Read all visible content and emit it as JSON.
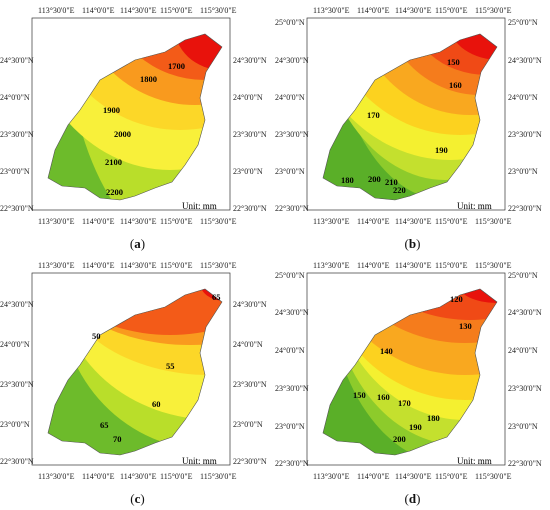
{
  "panels": [
    {
      "id": "a",
      "caption_open": "(",
      "caption_letter": "a",
      "caption_close": ")",
      "unit": "Unit: mm",
      "top_lon": [
        "113°30'0\"E",
        "114°0'0\"E",
        "114°30'0\"E",
        "115°0'0\"E",
        "115°30'0\"E"
      ],
      "bottom_lon": [
        "113°30'0\"E",
        "114°0'0\"E",
        "114°30'0\"E",
        "115°0'0\"E",
        "115°30'0\"E"
      ],
      "left_lat": [
        "24°30'0\"N",
        "24°0'0\"N",
        "23°30'0\"N",
        "23°0'0\"N",
        "22°30'0\"N"
      ],
      "right_lat": [
        "24°30'0\"N",
        "24°0'0\"N",
        "23°30'0\"N",
        "23°0'0\"N",
        "22°30'0\"N"
      ],
      "contour_labels": [
        "1700",
        "1800",
        "1900",
        "2000",
        "2100",
        "2200"
      ],
      "zone_colors": [
        "#e8120c",
        "#f35b18",
        "#f99a1e",
        "#fcd728",
        "#f8f03a",
        "#b9de2a",
        "#6dbb2b"
      ]
    },
    {
      "id": "b",
      "caption_open": "(",
      "caption_letter": "b",
      "caption_close": ")",
      "unit": "Unit: mm",
      "top_lon": [
        "113°30'0\"E",
        "114°0'0\"E",
        "114°30'0\"E",
        "115°0'0\"E",
        "115°30'0\"E"
      ],
      "bottom_lon": [
        "113°30'0\"E",
        "114°0'0\"E",
        "114°30'0\"E",
        "115°0'0\"E",
        "115°30'0\"E"
      ],
      "left_lat": [
        "25°0'0\"N",
        "24°30'0\"N",
        "24°0'0\"N",
        "23°30'0\"N",
        "23°0'0\"N",
        "22°30'0\"N"
      ],
      "right_lat": [
        "25°0'0\"N",
        "24°30'0\"N",
        "24°0'0\"N",
        "23°30'0\"N",
        "23°0'0\"N",
        "22°30'0\"N"
      ],
      "contour_labels": [
        "150",
        "160",
        "170",
        "180",
        "190",
        "200",
        "210",
        "220"
      ],
      "zone_colors": [
        "#e8120c",
        "#f04a16",
        "#f57c1c",
        "#f9a81f",
        "#fcd21f",
        "#f4f030",
        "#c4e02e",
        "#8dcb2b",
        "#5aaf28"
      ]
    },
    {
      "id": "c",
      "caption_open": "(",
      "caption_letter": "c",
      "caption_close": ")",
      "unit": "Unit: mm",
      "top_lon": [
        "113°30'0\"E",
        "114°0'0\"E",
        "114°30'0\"E",
        "115°0'0\"E",
        "115°30'0\"E"
      ],
      "bottom_lon": [
        "113°30'0\"E",
        "114°0'0\"E",
        "114°30'0\"E",
        "115°0'0\"E",
        "115°30'0\"E"
      ],
      "left_lat": [
        "24°30'0\"N",
        "24°0'0\"N",
        "23°30'0\"N",
        "23°0'0\"N",
        "22°30'0\"N"
      ],
      "right_lat": [
        "24°30'0\"N",
        "24°0'0\"N",
        "23°30'0\"N",
        "23°0'0\"N",
        "22°30'0\"N"
      ],
      "contour_labels": [
        "65",
        "50",
        "55",
        "60",
        "65",
        "70"
      ],
      "zone_colors": [
        "#e8120c",
        "#f35b18",
        "#f99a1e",
        "#fcd728",
        "#f8f03a",
        "#b9de2a",
        "#6dbb2b"
      ]
    },
    {
      "id": "d",
      "caption_open": "(",
      "caption_letter": "d",
      "caption_close": ")",
      "unit": "Unit: mm",
      "top_lon": [
        "113°30'0\"E",
        "114°0'0\"E",
        "114°30'0\"E",
        "115°0'0\"E",
        "115°30'0\"E"
      ],
      "bottom_lon": [
        "113°30'0\"E",
        "114°0'0\"E",
        "114°30'0\"E",
        "115°0'0\"E",
        "115°30'0\"E"
      ],
      "left_lat": [
        "25°0'0\"N",
        "24°30'0\"N",
        "24°0'0\"N",
        "23°30'0\"N",
        "23°0'0\"N",
        "22°30'0\"N"
      ],
      "right_lat": [
        "25°0'0\"N",
        "24°30'0\"N",
        "24°0'0\"N",
        "23°30'0\"N",
        "23°0'0\"N",
        "22°30'0\"N"
      ],
      "contour_labels": [
        "120",
        "130",
        "140",
        "150",
        "160",
        "170",
        "180",
        "190",
        "200"
      ],
      "zone_colors": [
        "#e8120c",
        "#f04a16",
        "#f57c1c",
        "#f9a81f",
        "#fcd21f",
        "#f4f030",
        "#c4e02e",
        "#8dcb2b",
        "#5aaf28"
      ]
    }
  ]
}
